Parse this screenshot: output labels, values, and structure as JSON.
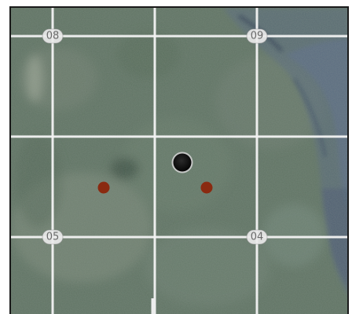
{
  "map": {
    "grid": {
      "labels": [
        {
          "id": "label-08",
          "text": "08"
        },
        {
          "id": "label-09",
          "text": "09"
        },
        {
          "id": "label-05",
          "text": "05"
        },
        {
          "id": "label-04",
          "text": "04"
        }
      ]
    },
    "markers": {
      "current_position": {
        "color": "#111111",
        "ring_color": "#cfcfcf"
      },
      "waypoints": [
        {
          "id": "waypoint-left",
          "color": "#8a2a10"
        },
        {
          "id": "waypoint-right",
          "color": "#8a2a10"
        }
      ]
    },
    "imagery": {
      "base_color": "#5f7264",
      "water_color": "#5a6b83"
    }
  }
}
